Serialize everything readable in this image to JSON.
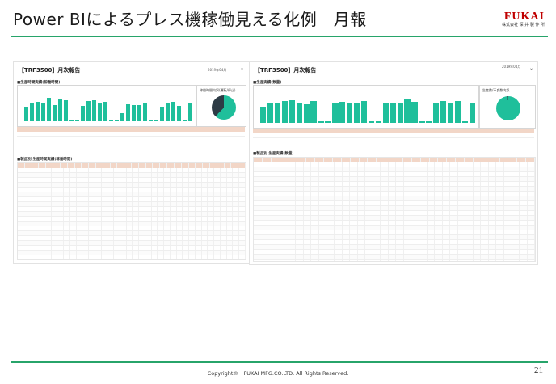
{
  "slide": {
    "title": "Power BIによるプレス機稼働見える化例　月報",
    "logo_text": "FUKAI",
    "logo_sub": "株式会社 深 井 製 作 所",
    "footer": "Copyright©　FUKAI MFG.CO.LTD. All Rights Reserved.",
    "page_number": "21"
  },
  "left_report": {
    "title": "【TRF3500】月次報告",
    "month": "2019年04月",
    "section1": "■生産時間実績(稼働時間)",
    "pie_title": "稼働時間内訳(運転/停止)",
    "section2": "■製品別 生産時間実績(稼働時間)",
    "bar_levels": [
      0.55,
      0.7,
      0.75,
      0.72,
      0.9,
      0.62,
      0.85,
      0.8,
      0.05,
      0.05,
      0.6,
      0.78,
      0.82,
      0.7,
      0.74,
      0.05,
      0.05,
      0.3,
      0.66,
      0.62,
      0.64,
      0.72,
      0.05,
      0.05,
      0.55,
      0.68,
      0.74,
      0.6,
      0.05,
      0.72
    ]
  },
  "right_report": {
    "title": "【TRF3500】月次報告",
    "month": "2019年04月",
    "section1": "■生産実績(数量)",
    "pie_title": "生産数/不良数内訳",
    "section2": "■製品別 生産実績(数量)",
    "bar_levels": [
      0.6,
      0.75,
      0.72,
      0.78,
      0.82,
      0.7,
      0.68,
      0.8,
      0.06,
      0.06,
      0.74,
      0.76,
      0.72,
      0.7,
      0.8,
      0.06,
      0.06,
      0.72,
      0.74,
      0.7,
      0.86,
      0.76,
      0.06,
      0.06,
      0.7,
      0.8,
      0.72,
      0.78,
      0.06,
      0.74
    ]
  },
  "colors": {
    "accent": "#27a46a",
    "bar": "#1fbf9b",
    "brand": "#c00000"
  },
  "icons": {
    "dropdown": "chevron-down-icon"
  }
}
